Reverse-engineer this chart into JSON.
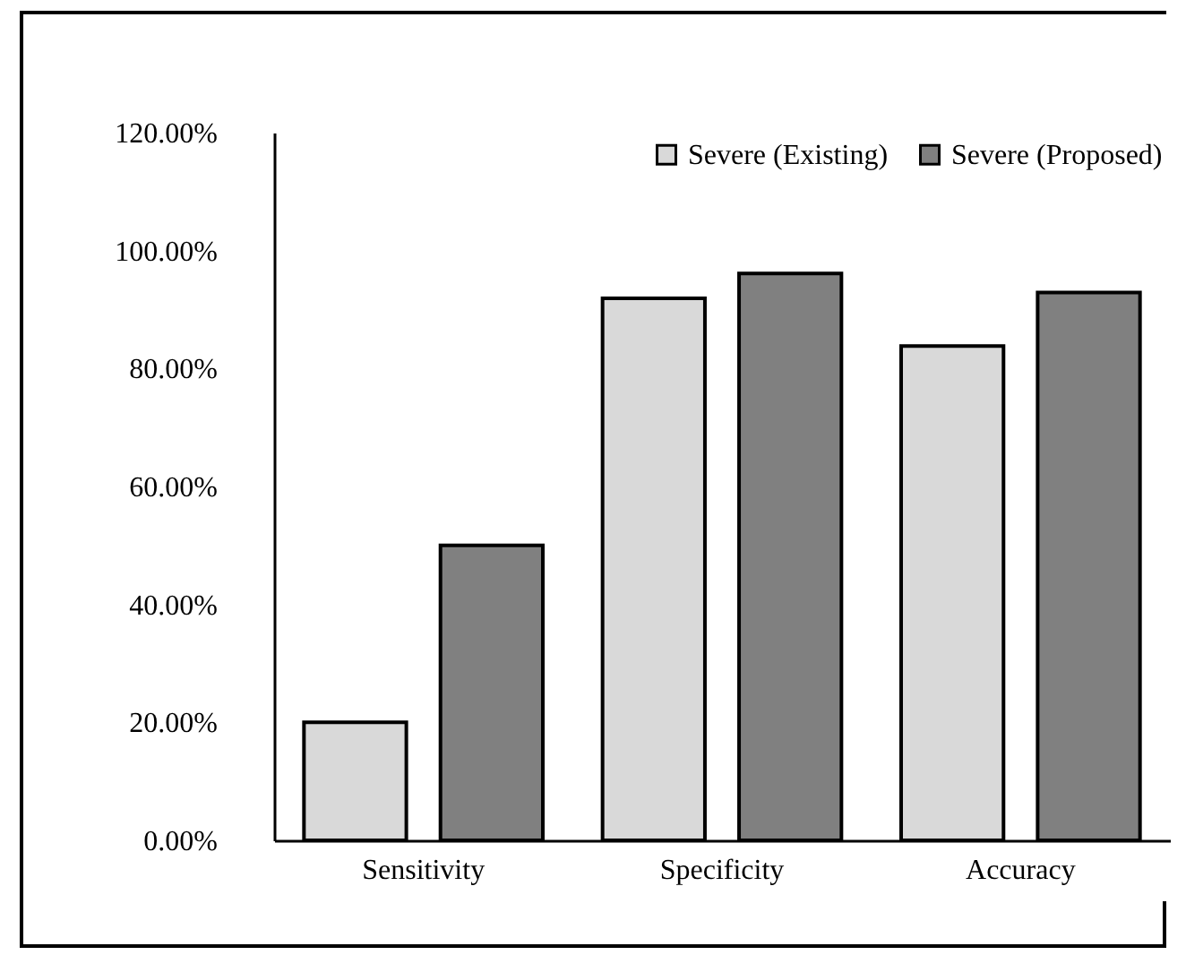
{
  "chart_data": {
    "type": "bar",
    "categories": [
      "Sensitivity",
      "Specificity",
      "Accuracy"
    ],
    "series": [
      {
        "name": "Severe (Existing)",
        "color": "#d9d9d9",
        "values": [
          20,
          91.9,
          83.8
        ]
      },
      {
        "name": "Severe (Proposed)",
        "color": "#808080",
        "values": [
          50,
          96.1,
          92.9
        ]
      }
    ],
    "ylim": [
      0,
      120
    ],
    "yticks": [
      {
        "value": 0,
        "label": "0.00%"
      },
      {
        "value": 20,
        "label": "20.00%"
      },
      {
        "value": 40,
        "label": "40.00%"
      },
      {
        "value": 60,
        "label": "60.00%"
      },
      {
        "value": 80,
        "label": "80.00%"
      },
      {
        "value": 100,
        "label": "100.00%"
      },
      {
        "value": 120,
        "label": "120.00%"
      }
    ],
    "grid": false,
    "legend": "top right"
  }
}
